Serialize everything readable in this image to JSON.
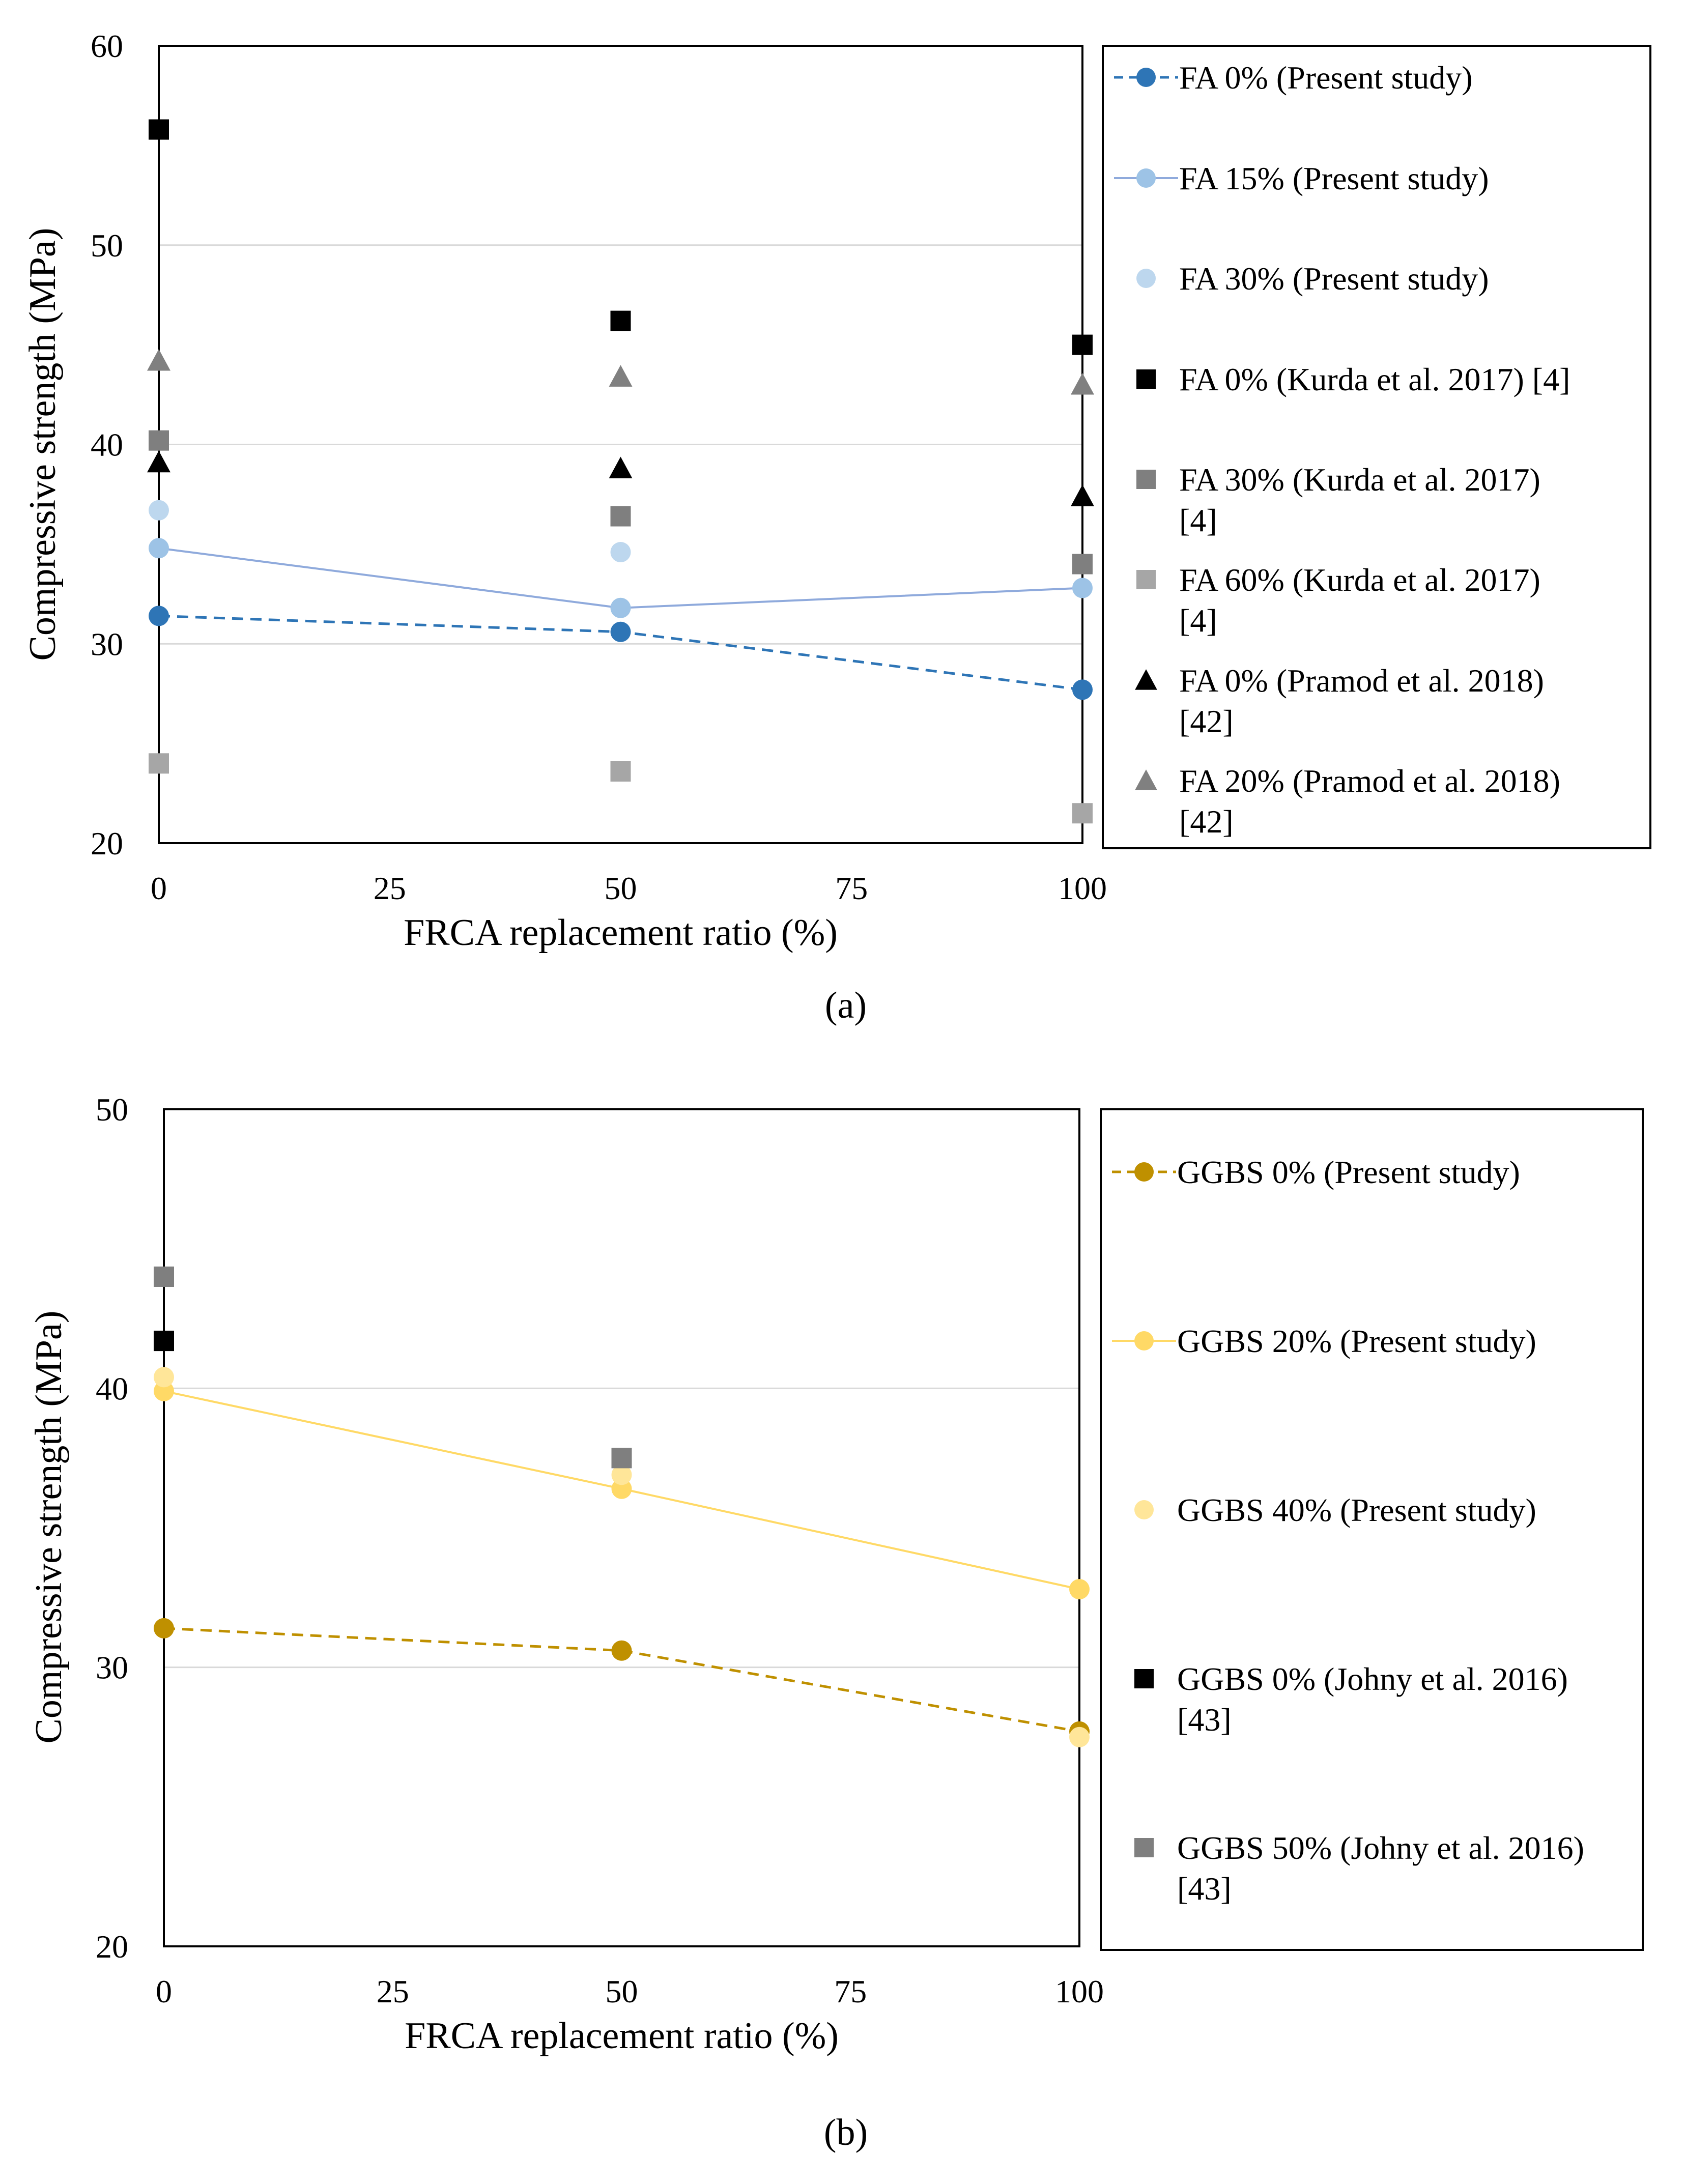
{
  "chart_data": [
    {
      "type": "scatter",
      "xlabel": "FRCA replacement  ratio (%)",
      "ylabel": "Compressive strength (MPa)",
      "xlim": [
        0,
        100
      ],
      "ylim": [
        20,
        60
      ],
      "xticks": [
        "0",
        "25",
        "50",
        "75",
        "100"
      ],
      "yticks": [
        "20",
        "30",
        "40",
        "50",
        "60"
      ],
      "grid": true,
      "caption": "(a)",
      "legend_position": "right",
      "series": [
        {
          "name": "FA 0% (Present study)",
          "marker": "circle",
          "line": "dashed",
          "color": "#2e75b6",
          "x": [
            0,
            50,
            100
          ],
          "y": [
            31.4,
            30.6,
            27.7
          ]
        },
        {
          "name": "FA 15% (Present study)",
          "marker": "circle",
          "line": "solid",
          "color": "#9dc3e6",
          "lineColor": "#8faadc",
          "x": [
            0,
            50,
            100
          ],
          "y": [
            34.8,
            31.8,
            32.8
          ]
        },
        {
          "name": "FA 30% (Present study)",
          "marker": "circle",
          "line": "none",
          "color": "#bdd7ee",
          "x": [
            0,
            50
          ],
          "y": [
            36.7,
            34.6
          ]
        },
        {
          "name": "FA 0% (Kurda et al. 2017) [4]",
          "marker": "square",
          "line": "none",
          "color": "#000000",
          "x": [
            0,
            50,
            100
          ],
          "y": [
            55.8,
            46.2,
            45.0
          ]
        },
        {
          "name": "FA 30% (Kurda et al. 2017) [4]",
          "marker": "square",
          "line": "none",
          "color": "#7f7f7f",
          "x": [
            0,
            50,
            100
          ],
          "y": [
            40.2,
            36.4,
            34.0
          ]
        },
        {
          "name": "FA 60% (Kurda et al. 2017) [4]",
          "marker": "square",
          "line": "none",
          "color": "#a6a6a6",
          "x": [
            0,
            50,
            100
          ],
          "y": [
            24.0,
            23.6,
            21.5
          ]
        },
        {
          "name": "FA 0% (Pramod et al. 2018) [42]",
          "marker": "triangle",
          "line": "none",
          "color": "#000000",
          "x": [
            0,
            50,
            100
          ],
          "y": [
            39.1,
            38.8,
            37.4
          ]
        },
        {
          "name": "FA 20% (Pramod et al. 2018) [42]",
          "marker": "triangle",
          "line": "none",
          "color": "#808080",
          "x": [
            0,
            50,
            100
          ],
          "y": [
            44.2,
            43.4,
            43.0
          ]
        }
      ],
      "legend_lines": [
        [
          "FA 0% (Present study)"
        ],
        [
          "FA 15% (Present study)"
        ],
        [
          "FA 30% (Present study)"
        ],
        [
          "FA 0% (Kurda et al. 2017) [4]"
        ],
        [
          "FA 30% (Kurda et al. 2017)",
          "[4]"
        ],
        [
          "FA 60% (Kurda et al. 2017)",
          "[4]"
        ],
        [
          "FA 0% (Pramod et al. 2018)",
          "[42]"
        ],
        [
          "FA 20% (Pramod et al. 2018)",
          "[42]"
        ]
      ]
    },
    {
      "type": "scatter",
      "xlabel": "FRCA replacement  ratio (%)",
      "ylabel": "Compressive strength (MPa)",
      "xlim": [
        0,
        100
      ],
      "ylim": [
        20,
        50
      ],
      "xticks": [
        "0",
        "25",
        "50",
        "75",
        "100"
      ],
      "yticks": [
        "20",
        "30",
        "40",
        "50"
      ],
      "grid": true,
      "caption": "(b)",
      "legend_position": "right",
      "series": [
        {
          "name": "GGBS 0% (Present study)",
          "marker": "circle",
          "line": "dashed",
          "color": "#bf9000",
          "x": [
            0,
            50,
            100
          ],
          "y": [
            31.4,
            30.6,
            27.7
          ]
        },
        {
          "name": "GGBS 20% (Present study)",
          "marker": "circle",
          "line": "solid",
          "color": "#ffd966",
          "lineColor": "#ffd966",
          "x": [
            0,
            50,
            100
          ],
          "y": [
            39.9,
            36.4,
            32.8
          ]
        },
        {
          "name": "GGBS 40% (Present study)",
          "marker": "circle",
          "line": "none",
          "color": "#ffe699",
          "x": [
            0,
            50,
            100
          ],
          "y": [
            40.4,
            36.9,
            27.5
          ]
        },
        {
          "name": "GGBS 0% (Johny et al. 2016) [43]",
          "marker": "square",
          "line": "none",
          "color": "#000000",
          "x": [
            0
          ],
          "y": [
            41.7
          ]
        },
        {
          "name": "GGBS 50% (Johny et al. 2016) [43]",
          "marker": "square",
          "line": "none",
          "color": "#7f7f7f",
          "x": [
            0,
            50
          ],
          "y": [
            44.0,
            37.5
          ]
        }
      ],
      "legend_lines": [
        [
          "GGBS 0% (Present study)"
        ],
        [
          "GGBS 20% (Present study)"
        ],
        [
          "GGBS 40% (Present study)"
        ],
        [
          "GGBS 0% (Johny et al. 2016)",
          "[43]"
        ],
        [
          "GGBS 50% (Johny et al. 2016)",
          "[43]"
        ]
      ]
    }
  ]
}
